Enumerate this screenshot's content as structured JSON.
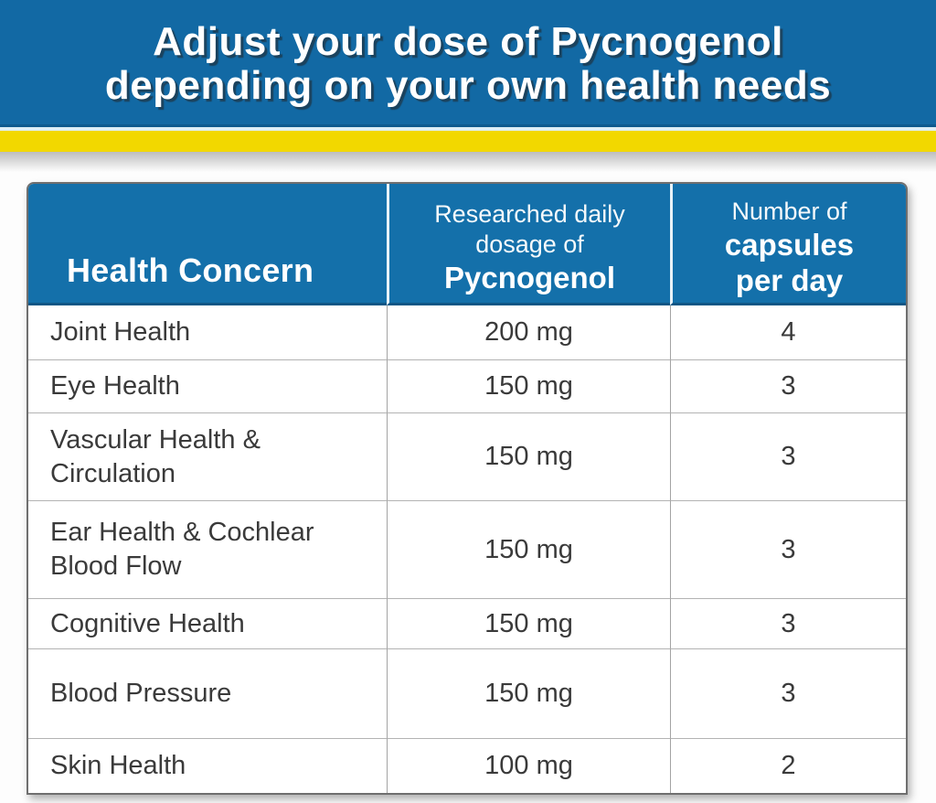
{
  "banner": {
    "title_line1": "Adjust your dose of Pycnogenol",
    "title_line2": "depending on your own health needs"
  },
  "colors": {
    "banner_blue": "#1269a4",
    "table_header_blue": "#1470aa",
    "accent_yellow": "#f2d800",
    "body_text": "#3a3a3a"
  },
  "table": {
    "col1_header": "Health Concern",
    "col2_header_line1": "Researched daily",
    "col2_header_line2": "dosage of",
    "col2_header_line3": "Pycnogenol",
    "col3_header_line1": "Number of",
    "col3_header_line2": "capsules",
    "col3_header_line3": "per day",
    "rows": [
      {
        "concern": "Joint Health",
        "dosage": "200 mg",
        "capsules": "4"
      },
      {
        "concern": "Eye Health",
        "dosage": "150 mg",
        "capsules": "3"
      },
      {
        "concern": "Vascular Health & Circulation",
        "dosage": "150 mg",
        "capsules": "3"
      },
      {
        "concern": "Ear Health & Cochlear Blood Flow",
        "dosage": "150 mg",
        "capsules": "3"
      },
      {
        "concern": "Cognitive Health",
        "dosage": "150 mg",
        "capsules": "3"
      },
      {
        "concern": "Blood Pressure",
        "dosage": "150 mg",
        "capsules": "3"
      },
      {
        "concern": "Skin Health",
        "dosage": "100 mg",
        "capsules": "2"
      }
    ]
  },
  "chart_data": {
    "type": "table",
    "title": "Adjust your dose of Pycnogenol depending on your own health needs",
    "columns": [
      "Health Concern",
      "Researched daily dosage of Pycnogenol",
      "Number of capsules per day"
    ],
    "rows": [
      [
        "Joint Health",
        "200 mg",
        4
      ],
      [
        "Eye Health",
        "150 mg",
        3
      ],
      [
        "Vascular Health & Circulation",
        "150 mg",
        3
      ],
      [
        "Ear Health & Cochlear Blood Flow",
        "150 mg",
        3
      ],
      [
        "Cognitive Health",
        "150 mg",
        3
      ],
      [
        "Blood Pressure",
        "150 mg",
        3
      ],
      [
        "Skin Health",
        "100 mg",
        2
      ]
    ]
  }
}
